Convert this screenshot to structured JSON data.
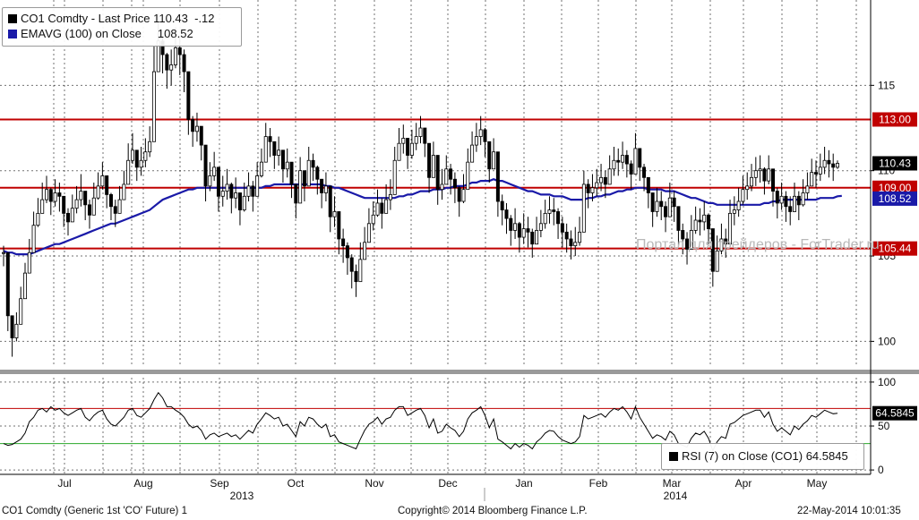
{
  "legend": {
    "series1": {
      "text": "CO1 Comdty - Last Price 110.43  -.12",
      "color": "#000000"
    },
    "series2": {
      "text": "EMAVG (100) on Close     108.52",
      "color": "#1a1aa8"
    }
  },
  "rsi_legend": {
    "text": "RSI (7) on Close (CO1) 64.5845",
    "color": "#000000"
  },
  "watermark": "Портал для трейдеров - ForTrader.ru",
  "footer": {
    "left": "CO1 Comdty (Generic 1st 'CO' Future) 1",
    "center": "Copyright© 2014 Bloomberg Finance L.P.",
    "right": "22-May-2014 10:01:35"
  },
  "colors": {
    "price": "#000000",
    "ema": "#1a1aa8",
    "level": "#c00000",
    "rsi": "#000000",
    "rsi_upper": "#c00000",
    "rsi_lower": "#2aa82a",
    "grid": "#000000"
  },
  "chart_data": {
    "type": "candlestick",
    "x_labels": [
      "Jul",
      "Aug",
      "Sep",
      "Oct",
      "Nov",
      "Dec",
      "Jan",
      "Feb",
      "Mar",
      "Apr",
      "May"
    ],
    "year_labels": [
      "2013",
      "2014"
    ],
    "price_panel": {
      "ylim": [
        98.5,
        120
      ],
      "yticks": [
        100,
        105,
        110,
        115
      ],
      "horizontal_levels": [
        113.0,
        109.0,
        105.44
      ],
      "last_price": 110.43,
      "ema_last": 108.52,
      "close": [
        105.2,
        101.5,
        100.2,
        101.0,
        102.5,
        104.0,
        105.2,
        106.8,
        107.5,
        108.3,
        108.9,
        108.2,
        108.7,
        108.5,
        107.5,
        107.0,
        107.8,
        108.3,
        108.8,
        108.0,
        107.4,
        108.4,
        109.1,
        109.7,
        108.6,
        107.9,
        107.5,
        108.3,
        109.2,
        110.6,
        111.2,
        110.2,
        110.6,
        111.1,
        111.7,
        115.8,
        117.6,
        116.8,
        115.9,
        116.2,
        117.2,
        116.8,
        115.8,
        113.0,
        112.3,
        112.6,
        111.5,
        109.1,
        109.7,
        110.2,
        108.5,
        108.8,
        109.2,
        108.4,
        108.7,
        107.7,
        108.5,
        109.1,
        108.5,
        109.7,
        110.5,
        112.0,
        111.7,
        110.9,
        111.2,
        110.1,
        110.5,
        109.2,
        108.1,
        110.0,
        109.1,
        110.6,
        110.2,
        109.5,
        108.7,
        109.1,
        107.3,
        107.6,
        106.0,
        105.6,
        104.9,
        104.1,
        103.5,
        104.8,
        105.8,
        106.9,
        107.4,
        108.1,
        107.5,
        108.3,
        108.6,
        110.6,
        111.6,
        111.9,
        110.9,
        111.6,
        112.0,
        112.5,
        111.6,
        109.6,
        110.9,
        108.9,
        109.2,
        110.1,
        109.5,
        109.0,
        108.2,
        108.9,
        110.5,
        111.5,
        112.0,
        112.4,
        111.7,
        110.1,
        111.1,
        108.2,
        107.7,
        107.2,
        106.5,
        106.9,
        106.1,
        106.6,
        106.4,
        105.7,
        106.5,
        106.9,
        107.5,
        107.7,
        107.6,
        106.9,
        106.4,
        106.0,
        105.6,
        105.8,
        106.4,
        109.2,
        108.7,
        109.0,
        109.3,
        109.6,
        109.2,
        110.1,
        110.6,
        110.5,
        110.9,
        110.4,
        109.8,
        111.3,
        110.2,
        109.6,
        108.7,
        107.6,
        108.2,
        107.9,
        107.3,
        108.4,
        107.9,
        106.5,
        106.0,
        105.4,
        106.5,
        107.1,
        107.0,
        107.4,
        106.6,
        104.1,
        105.3,
        106.0,
        105.7,
        107.5,
        107.7,
        108.2,
        108.9,
        109.1,
        109.6,
        110.0,
        110.1,
        109.4,
        110.1,
        108.8,
        108.1,
        108.5,
        107.9,
        107.6,
        108.5,
        108.0,
        108.7,
        109.1,
        109.9,
        109.8,
        110.2,
        110.6,
        110.4,
        110.2,
        110.43
      ],
      "high": [
        105.6,
        102.0,
        101.0,
        101.7,
        103.2,
        104.6,
        106.0,
        107.6,
        108.4,
        109.3,
        109.7,
        109.0,
        109.5,
        109.3,
        108.3,
        107.8,
        108.6,
        109.1,
        109.8,
        108.8,
        108.3,
        109.3,
        109.9,
        110.5,
        109.5,
        108.7,
        108.3,
        109.1,
        110.0,
        111.6,
        112.2,
        111.1,
        111.4,
        111.9,
        112.6,
        117.3,
        119.2,
        117.9,
        116.9,
        117.1,
        118.4,
        117.9,
        117.1,
        114.1,
        113.2,
        113.4,
        112.6,
        110.0,
        110.5,
        111.1,
        109.4,
        109.7,
        110.1,
        109.3,
        109.6,
        108.6,
        109.3,
        109.9,
        109.4,
        110.5,
        111.3,
        112.8,
        112.5,
        111.7,
        112.0,
        110.9,
        111.3,
        110.1,
        109.0,
        110.8,
        110.0,
        111.4,
        111.0,
        110.3,
        109.5,
        109.9,
        108.2,
        108.5,
        106.9,
        106.6,
        105.8,
        105.1,
        104.5,
        105.8,
        106.7,
        107.8,
        108.2,
        108.9,
        108.4,
        109.2,
        109.5,
        111.4,
        112.5,
        112.7,
        111.8,
        112.4,
        112.8,
        113.2,
        112.5,
        110.5,
        111.7,
        109.8,
        110.1,
        110.9,
        110.4,
        109.9,
        109.1,
        109.8,
        111.3,
        112.3,
        112.8,
        113.2,
        112.5,
        111.0,
        111.9,
        109.2,
        108.6,
        108.1,
        107.4,
        107.8,
        107.0,
        107.5,
        107.3,
        106.6,
        107.3,
        107.7,
        108.3,
        108.5,
        108.4,
        107.8,
        107.3,
        106.9,
        106.5,
        106.7,
        107.3,
        110.0,
        109.5,
        109.8,
        110.1,
        110.4,
        110.0,
        110.9,
        111.4,
        111.3,
        111.7,
        111.2,
        110.6,
        112.2,
        111.0,
        110.4,
        109.6,
        108.5,
        109.0,
        108.8,
        108.2,
        109.3,
        108.8,
        107.4,
        106.9,
        106.4,
        107.4,
        107.9,
        107.8,
        108.2,
        107.5,
        105.1,
        106.2,
        106.9,
        106.6,
        108.3,
        108.5,
        109.0,
        109.7,
        109.9,
        110.4,
        110.8,
        110.9,
        110.2,
        110.9,
        109.7,
        109.0,
        109.3,
        108.8,
        108.5,
        109.3,
        108.8,
        109.5,
        109.9,
        110.7,
        110.6,
        111.0,
        111.4,
        111.2,
        111.0,
        110.6
      ],
      "low": [
        104.4,
        100.6,
        99.1,
        100.0,
        101.5,
        103.2,
        104.4,
        106.0,
        106.7,
        107.5,
        108.1,
        107.4,
        107.9,
        107.6,
        106.7,
        106.2,
        107.0,
        107.5,
        107.9,
        107.1,
        106.6,
        107.6,
        108.3,
        108.9,
        107.8,
        107.1,
        106.7,
        107.5,
        108.4,
        109.7,
        110.4,
        109.4,
        109.7,
        110.2,
        110.8,
        114.6,
        116.2,
        115.7,
        114.8,
        115.0,
        116.0,
        115.6,
        114.6,
        112.1,
        111.4,
        111.7,
        110.6,
        108.2,
        108.8,
        109.4,
        107.6,
        107.9,
        108.3,
        107.5,
        107.8,
        106.8,
        107.6,
        108.2,
        107.6,
        108.9,
        109.6,
        111.1,
        110.8,
        110.1,
        110.3,
        109.3,
        109.6,
        108.4,
        107.2,
        109.1,
        108.2,
        109.7,
        109.4,
        108.6,
        107.8,
        108.2,
        106.4,
        106.7,
        105.1,
        104.6,
        103.9,
        103.1,
        102.6,
        103.9,
        104.9,
        106.0,
        106.5,
        107.3,
        106.6,
        107.5,
        107.7,
        109.7,
        110.8,
        111.0,
        110.1,
        110.7,
        111.2,
        111.6,
        110.8,
        108.7,
        110.0,
        108.0,
        108.3,
        109.2,
        108.6,
        108.1,
        107.3,
        108.1,
        109.6,
        110.7,
        111.1,
        111.5,
        110.8,
        109.3,
        110.2,
        107.3,
        106.8,
        106.3,
        105.6,
        106.0,
        105.2,
        105.7,
        105.5,
        104.9,
        105.7,
        106.1,
        106.6,
        106.9,
        106.8,
        106.0,
        105.5,
        105.2,
        104.8,
        105.0,
        105.6,
        108.3,
        107.8,
        108.2,
        108.5,
        108.8,
        108.4,
        109.2,
        109.7,
        109.7,
        110.1,
        109.6,
        108.9,
        110.5,
        109.4,
        108.8,
        107.8,
        106.7,
        107.3,
        107.1,
        106.4,
        107.5,
        107.0,
        105.6,
        105.1,
        104.5,
        105.6,
        106.3,
        106.2,
        106.5,
        105.7,
        103.2,
        104.4,
        105.1,
        104.9,
        106.6,
        106.8,
        107.3,
        108.0,
        108.3,
        108.8,
        109.1,
        109.3,
        108.6,
        109.2,
        107.9,
        107.2,
        107.7,
        107.0,
        106.8,
        107.7,
        107.1,
        107.9,
        108.3,
        109.1,
        109.0,
        109.4,
        109.8,
        109.6,
        109.4,
        110.1
      ],
      "ema": [
        105.3,
        105.2,
        105.2,
        105.1,
        105.1,
        105.1,
        105.1,
        105.2,
        105.3,
        105.4,
        105.5,
        105.6,
        105.7,
        105.7,
        105.8,
        105.9,
        106.0,
        106.1,
        106.2,
        106.3,
        106.4,
        106.5,
        106.6,
        106.7,
        106.8,
        106.9,
        106.9,
        107.0,
        107.1,
        107.2,
        107.3,
        107.4,
        107.5,
        107.6,
        107.7,
        107.9,
        108.1,
        108.3,
        108.4,
        108.5,
        108.6,
        108.7,
        108.8,
        108.9,
        108.9,
        109.0,
        109.0,
        109.0,
        109.0,
        109.0,
        109.0,
        109.0,
        109.0,
        109.0,
        109.0,
        109.0,
        109.0,
        109.0,
        109.0,
        109.0,
        109.0,
        109.1,
        109.1,
        109.2,
        109.2,
        109.2,
        109.2,
        109.2,
        109.2,
        109.2,
        109.2,
        109.2,
        109.2,
        109.2,
        109.2,
        109.1,
        109.1,
        109.0,
        109.0,
        108.9,
        108.8,
        108.7,
        108.6,
        108.5,
        108.4,
        108.4,
        108.4,
        108.4,
        108.4,
        108.4,
        108.4,
        108.4,
        108.5,
        108.5,
        108.6,
        108.6,
        108.7,
        108.8,
        108.8,
        108.8,
        108.9,
        108.9,
        108.9,
        109.0,
        109.0,
        109.1,
        109.1,
        109.1,
        109.2,
        109.3,
        109.3,
        109.4,
        109.4,
        109.4,
        109.5,
        109.4,
        109.4,
        109.3,
        109.2,
        109.1,
        109.0,
        108.9,
        108.8,
        108.8,
        108.7,
        108.6,
        108.6,
        108.6,
        108.5,
        108.5,
        108.5,
        108.4,
        108.3,
        108.3,
        108.3,
        108.3,
        108.4,
        108.4,
        108.5,
        108.5,
        108.6,
        108.6,
        108.7,
        108.8,
        108.8,
        108.9,
        108.9,
        109.0,
        109.0,
        109.0,
        108.9,
        108.9,
        108.9,
        108.9,
        108.8,
        108.8,
        108.8,
        108.7,
        108.6,
        108.5,
        108.4,
        108.4,
        108.3,
        108.2,
        108.1,
        108.1,
        108.0,
        108.0,
        108.0,
        108.0,
        108.0,
        108.0,
        108.0,
        108.0,
        108.0,
        108.0,
        108.0,
        108.1,
        108.1,
        108.2,
        108.2,
        108.3,
        108.3,
        108.3,
        108.3,
        108.3,
        108.3,
        108.3,
        108.3,
        108.3,
        108.4,
        108.4,
        108.4,
        108.4,
        108.5,
        108.52
      ]
    },
    "rsi_panel": {
      "ylim": [
        -5,
        105
      ],
      "yticks": [
        0,
        50,
        100
      ],
      "upper_level": 70,
      "lower_level": 30,
      "last_value": 64.5845,
      "values": [
        30,
        28,
        29,
        32,
        35,
        42,
        55,
        60,
        68,
        70,
        66,
        72,
        68,
        70,
        65,
        62,
        65,
        68,
        70,
        60,
        56,
        62,
        66,
        68,
        58,
        52,
        50,
        55,
        60,
        68,
        70,
        62,
        60,
        65,
        70,
        80,
        88,
        82,
        72,
        72,
        68,
        65,
        60,
        52,
        48,
        50,
        45,
        35,
        40,
        42,
        38,
        40,
        42,
        38,
        40,
        35,
        40,
        45,
        42,
        52,
        58,
        65,
        62,
        58,
        60,
        50,
        52,
        45,
        38,
        55,
        50,
        60,
        58,
        52,
        48,
        52,
        38,
        40,
        32,
        30,
        28,
        26,
        24,
        35,
        45,
        52,
        55,
        60,
        52,
        58,
        60,
        68,
        72,
        72,
        62,
        65,
        68,
        70,
        62,
        48,
        58,
        42,
        44,
        52,
        48,
        45,
        38,
        44,
        58,
        65,
        68,
        72,
        62,
        48,
        58,
        35,
        32,
        28,
        24,
        30,
        26,
        30,
        28,
        24,
        32,
        36,
        42,
        45,
        44,
        38,
        34,
        32,
        30,
        32,
        38,
        62,
        58,
        60,
        62,
        64,
        60,
        66,
        70,
        68,
        72,
        66,
        58,
        72,
        60,
        52,
        44,
        36,
        40,
        38,
        34,
        44,
        40,
        30,
        28,
        26,
        36,
        42,
        40,
        44,
        36,
        22,
        32,
        38,
        36,
        52,
        54,
        58,
        62,
        64,
        66,
        68,
        68,
        60,
        66,
        52,
        44,
        48,
        44,
        40,
        50,
        46,
        52,
        56,
        62,
        60,
        64,
        68,
        66,
        64,
        64.5845
      ]
    }
  }
}
